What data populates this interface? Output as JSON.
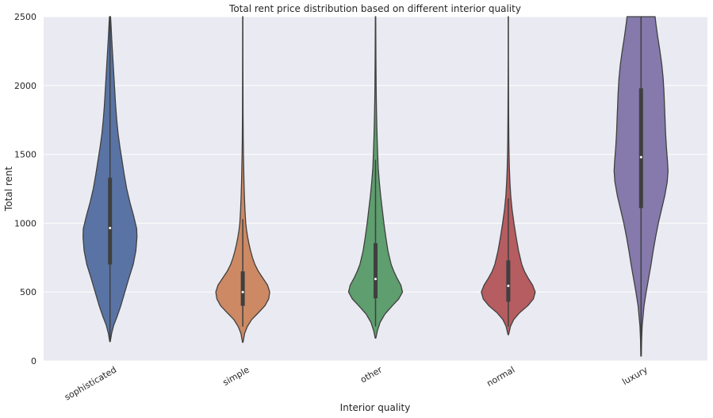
{
  "chart_data": {
    "type": "violin",
    "title": "Total rent price distribution based on different interior quality",
    "xlabel": "Interior quality",
    "ylabel": "Total rent",
    "ylim": [
      0,
      2500
    ],
    "yticks": [
      "0",
      "500",
      "1000",
      "1500",
      "2000",
      "2500"
    ],
    "grid": true,
    "categories": [
      {
        "name": "sophisticated",
        "color": "#5974A4",
        "min": 140,
        "max": 2500,
        "q1": 700,
        "median": 965,
        "q3": 1330,
        "whisker_low": 140,
        "whisker_high": 2500,
        "density": [
          [
            140,
            0.01
          ],
          [
            200,
            0.06
          ],
          [
            260,
            0.14
          ],
          [
            320,
            0.26
          ],
          [
            400,
            0.4
          ],
          [
            500,
            0.55
          ],
          [
            600,
            0.7
          ],
          [
            700,
            0.86
          ],
          [
            800,
            0.96
          ],
          [
            900,
            1.0
          ],
          [
            960,
            0.99
          ],
          [
            1050,
            0.88
          ],
          [
            1150,
            0.74
          ],
          [
            1250,
            0.62
          ],
          [
            1350,
            0.53
          ],
          [
            1450,
            0.45
          ],
          [
            1550,
            0.37
          ],
          [
            1650,
            0.3
          ],
          [
            1750,
            0.25
          ],
          [
            1850,
            0.21
          ],
          [
            1950,
            0.18
          ],
          [
            2050,
            0.15
          ],
          [
            2150,
            0.12
          ],
          [
            2250,
            0.09
          ],
          [
            2350,
            0.06
          ],
          [
            2450,
            0.035
          ],
          [
            2500,
            0.02
          ]
        ]
      },
      {
        "name": "simple",
        "color": "#CC8963",
        "min": 135,
        "max": 2500,
        "q1": 400,
        "median": 500,
        "q3": 650,
        "whisker_low": 250,
        "whisker_high": 1030,
        "density": [
          [
            135,
            0.01
          ],
          [
            200,
            0.07
          ],
          [
            250,
            0.17
          ],
          [
            300,
            0.33
          ],
          [
            350,
            0.58
          ],
          [
            400,
            0.82
          ],
          [
            450,
            0.96
          ],
          [
            500,
            1.0
          ],
          [
            550,
            0.92
          ],
          [
            600,
            0.75
          ],
          [
            650,
            0.58
          ],
          [
            700,
            0.45
          ],
          [
            750,
            0.36
          ],
          [
            800,
            0.29
          ],
          [
            850,
            0.23
          ],
          [
            900,
            0.18
          ],
          [
            950,
            0.14
          ],
          [
            1000,
            0.11
          ],
          [
            1100,
            0.08
          ],
          [
            1200,
            0.06
          ],
          [
            1300,
            0.045
          ],
          [
            1400,
            0.035
          ],
          [
            1500,
            0.025
          ],
          [
            1600,
            0.018
          ],
          [
            1800,
            0.011
          ],
          [
            2000,
            0.008
          ],
          [
            2200,
            0.006
          ],
          [
            2500,
            0.004
          ]
        ]
      },
      {
        "name": "other",
        "color": "#5F9E6E",
        "min": 165,
        "max": 2500,
        "q1": 455,
        "median": 595,
        "q3": 855,
        "whisker_low": 250,
        "whisker_high": 1460,
        "density": [
          [
            165,
            0.01
          ],
          [
            220,
            0.07
          ],
          [
            280,
            0.17
          ],
          [
            340,
            0.35
          ],
          [
            400,
            0.62
          ],
          [
            450,
            0.86
          ],
          [
            500,
            1.0
          ],
          [
            550,
            0.94
          ],
          [
            600,
            0.8
          ],
          [
            650,
            0.68
          ],
          [
            700,
            0.58
          ],
          [
            800,
            0.46
          ],
          [
            900,
            0.38
          ],
          [
            1000,
            0.31
          ],
          [
            1100,
            0.25
          ],
          [
            1200,
            0.19
          ],
          [
            1300,
            0.14
          ],
          [
            1400,
            0.1
          ],
          [
            1500,
            0.08
          ],
          [
            1600,
            0.062
          ],
          [
            1700,
            0.048
          ],
          [
            1800,
            0.037
          ],
          [
            1900,
            0.028
          ],
          [
            2000,
            0.022
          ],
          [
            2200,
            0.014
          ],
          [
            2400,
            0.009
          ],
          [
            2500,
            0.007
          ]
        ]
      },
      {
        "name": "normal",
        "color": "#B55D60",
        "min": 190,
        "max": 2500,
        "q1": 430,
        "median": 545,
        "q3": 730,
        "whisker_low": 250,
        "whisker_high": 1180,
        "density": [
          [
            190,
            0.01
          ],
          [
            250,
            0.08
          ],
          [
            300,
            0.2
          ],
          [
            350,
            0.42
          ],
          [
            400,
            0.72
          ],
          [
            450,
            0.93
          ],
          [
            500,
            1.0
          ],
          [
            550,
            0.9
          ],
          [
            600,
            0.74
          ],
          [
            650,
            0.6
          ],
          [
            700,
            0.5
          ],
          [
            800,
            0.38
          ],
          [
            900,
            0.29
          ],
          [
            1000,
            0.21
          ],
          [
            1100,
            0.14
          ],
          [
            1200,
            0.09
          ],
          [
            1300,
            0.06
          ],
          [
            1400,
            0.04
          ],
          [
            1500,
            0.028
          ],
          [
            1600,
            0.02
          ],
          [
            1800,
            0.012
          ],
          [
            2000,
            0.008
          ],
          [
            2200,
            0.005
          ],
          [
            2500,
            0.004
          ]
        ]
      },
      {
        "name": "luxury",
        "color": "#857AAB",
        "min": 35,
        "max": 2500,
        "q1": 1110,
        "median": 1480,
        "q3": 1980,
        "whisker_low": 35,
        "whisker_high": 2500,
        "density": [
          [
            35,
            0.01
          ],
          [
            150,
            0.02
          ],
          [
            250,
            0.04
          ],
          [
            400,
            0.11
          ],
          [
            500,
            0.19
          ],
          [
            600,
            0.28
          ],
          [
            700,
            0.37
          ],
          [
            800,
            0.45
          ],
          [
            900,
            0.54
          ],
          [
            1000,
            0.64
          ],
          [
            1100,
            0.76
          ],
          [
            1200,
            0.88
          ],
          [
            1300,
            0.97
          ],
          [
            1380,
            1.0
          ],
          [
            1450,
            0.98
          ],
          [
            1550,
            0.94
          ],
          [
            1650,
            0.91
          ],
          [
            1750,
            0.89
          ],
          [
            1850,
            0.87
          ],
          [
            1950,
            0.85
          ],
          [
            2050,
            0.82
          ],
          [
            2150,
            0.77
          ],
          [
            2250,
            0.7
          ],
          [
            2350,
            0.62
          ],
          [
            2450,
            0.55
          ],
          [
            2500,
            0.52
          ]
        ]
      }
    ]
  }
}
